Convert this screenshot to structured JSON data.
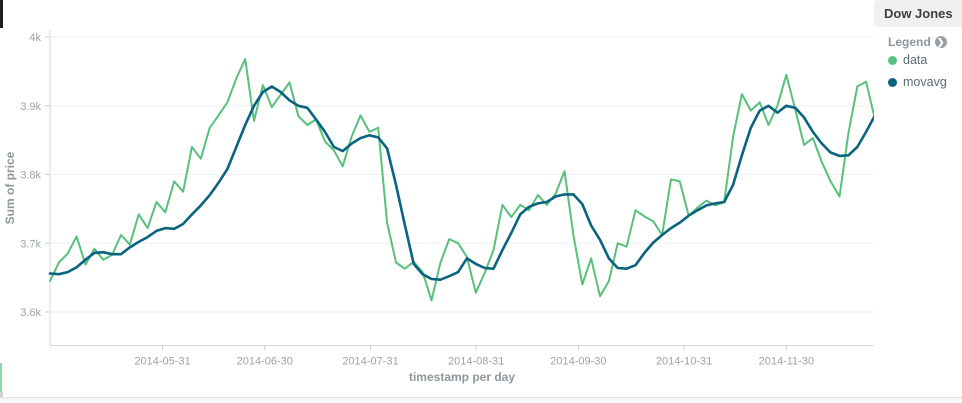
{
  "panel": {
    "title": "Dow Jones"
  },
  "legend": {
    "heading": "Legend",
    "items": [
      {
        "label": "data",
        "color": "#57c17b"
      },
      {
        "label": "movavg",
        "color": "#0a6380"
      }
    ]
  },
  "axes": {
    "y_title": "Sum of price",
    "x_title": "timestamp per day"
  },
  "chart_data": {
    "type": "line",
    "title": "Dow Jones",
    "xlabel": "timestamp per day",
    "ylabel": "Sum of price",
    "x_start_date": "2014-04-28",
    "x_end_date": "2014-12-26",
    "domain_days": 242,
    "ylim": [
      3.552,
      4.01
    ],
    "grid": "horizontal-only",
    "legend_position": "right",
    "y_ticks": [
      {
        "value": 4.0,
        "label": "4k"
      },
      {
        "value": 3.9,
        "label": "3.9k"
      },
      {
        "value": 3.8,
        "label": "3.8k"
      },
      {
        "value": 3.7,
        "label": "3.7k"
      },
      {
        "value": 3.6,
        "label": "3.6k"
      }
    ],
    "x_ticks": [
      {
        "label": "2014-05-31",
        "day": 33
      },
      {
        "label": "2014-06-30",
        "day": 63
      },
      {
        "label": "2014-07-31",
        "day": 94
      },
      {
        "label": "2014-08-31",
        "day": 125
      },
      {
        "label": "2014-09-30",
        "day": 155
      },
      {
        "label": "2014-10-31",
        "day": 186
      },
      {
        "label": "2014-11-30",
        "day": 216
      }
    ],
    "units": "k (thousands of Sum of price)",
    "sampling": "94 evenly spaced samples across the x domain (~2.6 days apart)",
    "series": [
      {
        "name": "data",
        "color": "#57c17b",
        "stroke_width": 2,
        "values": [
          3.645,
          3.672,
          3.685,
          3.71,
          3.669,
          3.692,
          3.676,
          3.683,
          3.712,
          3.698,
          3.742,
          3.722,
          3.76,
          3.745,
          3.79,
          3.775,
          3.84,
          3.823,
          3.868,
          3.886,
          3.905,
          3.94,
          3.968,
          3.878,
          3.93,
          3.898,
          3.916,
          3.934,
          3.885,
          3.872,
          3.88,
          3.848,
          3.835,
          3.812,
          3.855,
          3.886,
          3.862,
          3.868,
          3.73,
          3.672,
          3.663,
          3.673,
          3.658,
          3.617,
          3.671,
          3.706,
          3.7,
          3.68,
          3.628,
          3.657,
          3.69,
          3.756,
          3.738,
          3.756,
          3.748,
          3.77,
          3.756,
          3.772,
          3.805,
          3.712,
          3.64,
          3.678,
          3.623,
          3.645,
          3.7,
          3.695,
          3.748,
          3.739,
          3.732,
          3.712,
          3.793,
          3.79,
          3.74,
          3.752,
          3.762,
          3.755,
          3.76,
          3.855,
          3.917,
          3.893,
          3.905,
          3.872,
          3.9,
          3.945,
          3.895,
          3.843,
          3.853,
          3.818,
          3.79,
          3.768,
          3.86,
          3.928,
          3.935,
          3.88
        ]
      },
      {
        "name": "movavg",
        "color": "#0a6380",
        "stroke_width": 2.6,
        "values": [
          3.656,
          3.655,
          3.658,
          3.665,
          3.676,
          3.686,
          3.687,
          3.684,
          3.684,
          3.694,
          3.702,
          3.709,
          3.718,
          3.722,
          3.721,
          3.728,
          3.742,
          3.755,
          3.77,
          3.788,
          3.808,
          3.84,
          3.872,
          3.9,
          3.92,
          3.928,
          3.92,
          3.908,
          3.9,
          3.897,
          3.88,
          3.862,
          3.84,
          3.834,
          3.845,
          3.853,
          3.857,
          3.854,
          3.838,
          3.785,
          3.727,
          3.67,
          3.655,
          3.648,
          3.647,
          3.652,
          3.658,
          3.678,
          3.67,
          3.664,
          3.663,
          3.69,
          3.715,
          3.742,
          3.753,
          3.758,
          3.76,
          3.768,
          3.771,
          3.771,
          3.757,
          3.726,
          3.705,
          3.678,
          3.664,
          3.663,
          3.668,
          3.686,
          3.701,
          3.712,
          3.722,
          3.73,
          3.74,
          3.748,
          3.755,
          3.758,
          3.76,
          3.785,
          3.828,
          3.868,
          3.893,
          3.9,
          3.89,
          3.9,
          3.897,
          3.883,
          3.862,
          3.845,
          3.832,
          3.827,
          3.828,
          3.84,
          3.862,
          3.886
        ]
      }
    ]
  }
}
